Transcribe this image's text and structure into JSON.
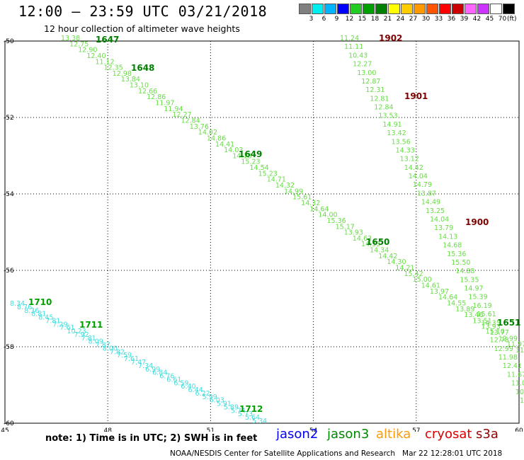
{
  "header": {
    "title": "12:00 – 23:59 UTC 03/21/2018",
    "subtitle": "12 hour collection of altimeter wave heights"
  },
  "color_scale": {
    "labels": [
      "3",
      "6",
      "9",
      "12",
      "15",
      "18",
      "21",
      "24",
      "27",
      "30",
      "33",
      "36",
      "39",
      "42",
      "45",
      "70"
    ],
    "unit": "(ft)",
    "colors": [
      "#808080",
      "#00eeee",
      "#00b4ff",
      "#0000ff",
      "#22cc22",
      "#00a000",
      "#008000",
      "#ffff00",
      "#ffcc00",
      "#ff9900",
      "#ff5500",
      "#ff0000",
      "#cc0000",
      "#ff66ff",
      "#cc33ff",
      "#ffffff",
      "#000000"
    ]
  },
  "axes": {
    "x_ticks": [
      "45",
      "48",
      "51",
      "54",
      "57",
      "60"
    ],
    "y_ticks": [
      "-50",
      "-52",
      "-54",
      "-56",
      "-58",
      "-60"
    ]
  },
  "tracks": [
    {
      "name": "1647",
      "color": "#008000",
      "labels": [
        "13.38",
        "12.75",
        "12.90",
        "12.40",
        "11.12",
        "12.35",
        "12.98",
        "13.84",
        "13.10",
        "12.66",
        "12.86",
        "11.97",
        "11.94",
        "12.27",
        "12.84",
        "13.76",
        "14.02",
        "14.86",
        "14.41",
        "14.03",
        "14.18",
        "15.23",
        "14.54",
        "15.23",
        "14.71",
        "14.32",
        "14.99",
        "15.61",
        "14.32",
        "14.64",
        "14.00",
        "15.36",
        "15.17",
        "13.93",
        "14.63",
        "14.33",
        "14.34",
        "14.42",
        "14.30",
        "14.21",
        "15.42",
        "15.00",
        "14.61",
        "13.97",
        "14.64",
        "14.55",
        "13.89",
        "13.46",
        "13.51",
        "13.93",
        "13.77",
        "12.99",
        "11.97",
        "11.8"
      ],
      "times": [
        "1647",
        "1648",
        "1649",
        "1650",
        "1651"
      ]
    },
    {
      "name": "1902",
      "color": "#800000",
      "labels": [
        "11.24",
        "11.11",
        "10.43",
        "12.27",
        "13.00",
        "12.87",
        "12.31",
        "12.81",
        "12.84",
        "13.53",
        "14.91",
        "13.42",
        "13.56",
        "14.33",
        "13.12",
        "14.42",
        "14.04",
        "14.79",
        "13.87",
        "14.49",
        "13.25",
        "14.04",
        "13.79",
        "14.13",
        "14.68",
        "15.36",
        "15.50",
        "14.88",
        "15.35",
        "14.97",
        "15.39",
        "16.19",
        "15.61",
        "14.35",
        "15.10",
        "12.78",
        "12.99",
        "11.98",
        "12.41",
        "11.67",
        "11.01",
        "10.2",
        "10"
      ],
      "times": [
        "1902",
        "1901",
        "1900"
      ]
    },
    {
      "name": "1710",
      "color": "#00a000",
      "labels": [
        "8.34",
        "8.76",
        "8.36",
        "8.81",
        "8.45",
        "7.81",
        "7.29",
        "7.61",
        "10.23",
        "7.92",
        "7.81",
        "8.09",
        "7.87",
        "8.00",
        "7.82",
        "7.59",
        "7.61",
        "7.47",
        "7.34",
        "6.99",
        "6.84",
        "6.76",
        "6.61",
        "6.59",
        "6.40",
        "6.44",
        "6.22",
        "5.99",
        "6.03",
        "5.91",
        "5.89",
        "5.74",
        "5.73",
        "5.64",
        "5.34"
      ],
      "times": [
        "1710",
        "1711",
        "1712"
      ]
    }
  ],
  "legend": {
    "note": "note: 1) Time is in UTC; 2) SWH is in feet",
    "satellites": [
      {
        "name": "jason2",
        "color": "#0000ff"
      },
      {
        "name": "jason3",
        "color": "#008800"
      },
      {
        "name": "altika",
        "color": "#ff9900"
      },
      {
        "name": "cryosat",
        "color": "#dd0000"
      },
      {
        "name": "s3a",
        "color": "#990000"
      }
    ]
  },
  "credit": "NOAA/NESDIS Center for Satellite Applications and Research",
  "timestamp": "Mar 22 12:28:01 UTC 2018"
}
